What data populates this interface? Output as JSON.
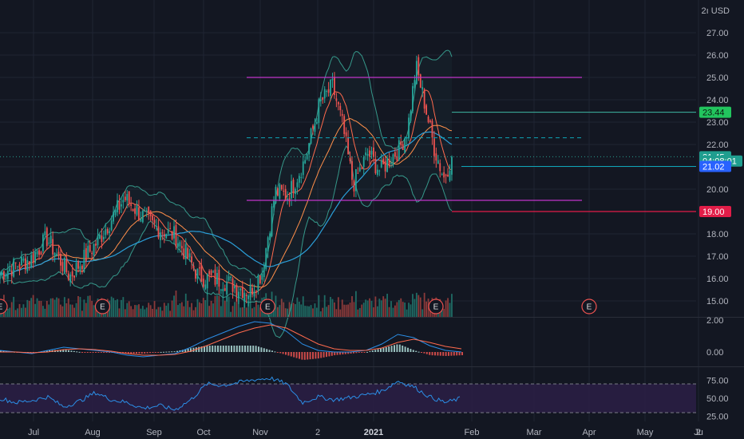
{
  "header": {
    "currency_label": "2ı USD"
  },
  "colors": {
    "background": "#131722",
    "grid": "#1f2433",
    "candle_up": "#26a69a",
    "candle_down": "#ef5350",
    "volume_up": "#1f6b64",
    "volume_down": "#8b3a3a",
    "ma_fast": "#ff6a4d",
    "ma_slow": "#ff8f4a",
    "ma_long": "#2b9fd8",
    "bollinger": "#3fb8a4",
    "resistance": "#c034c8",
    "target": "#22c55e",
    "stop": "#e11d48",
    "price_line": "#0ea5b7",
    "macd_line": "#2b8ee6",
    "signal_line": "#ff6a4d",
    "rsi_line": "#2b8ee6",
    "rsi_band": "#2a1e44"
  },
  "chart_data": [
    {
      "type": "candlestick",
      "title": "",
      "price_axis": {
        "ylim": [
          14.5,
          27.5
        ],
        "ticks": [
          "27.00",
          "26.00",
          "25.00",
          "24.00",
          "23.00",
          "22.00",
          "21.00",
          "20.00",
          "19.00",
          "18.00",
          "17.00",
          "16.00",
          "15.00"
        ]
      },
      "time_axis": {
        "ticks": [
          "Jul",
          "Aug",
          "Sep",
          "Oct",
          "Nov",
          "2",
          "2021",
          "Feb",
          "Mar",
          "Apr",
          "May",
          "2",
          "Ju"
        ]
      },
      "date_range": [
        "2020-06-01",
        "2021-02-19"
      ],
      "close_series": [
        {
          "date": "2020-06-01",
          "close": 16.2
        },
        {
          "date": "2020-06-15",
          "close": 16.6
        },
        {
          "date": "2020-06-29",
          "close": 16.9
        },
        {
          "date": "2020-07-08",
          "close": 17.8
        },
        {
          "date": "2020-07-20",
          "close": 16.1
        },
        {
          "date": "2020-08-03",
          "close": 17.6
        },
        {
          "date": "2020-08-17",
          "close": 19.6
        },
        {
          "date": "2020-08-31",
          "close": 18.4
        },
        {
          "date": "2020-09-14",
          "close": 17.9
        },
        {
          "date": "2020-09-28",
          "close": 16.1
        },
        {
          "date": "2020-10-12",
          "close": 15.9
        },
        {
          "date": "2020-10-26",
          "close": 15.4
        },
        {
          "date": "2020-11-02",
          "close": 16.3
        },
        {
          "date": "2020-11-09",
          "close": 19.9
        },
        {
          "date": "2020-11-16",
          "close": 19.7
        },
        {
          "date": "2020-11-25",
          "close": 21.3
        },
        {
          "date": "2020-12-03",
          "close": 23.8
        },
        {
          "date": "2020-12-10",
          "close": 24.6
        },
        {
          "date": "2020-12-15",
          "close": 23.0
        },
        {
          "date": "2020-12-21",
          "close": 20.2
        },
        {
          "date": "2020-12-29",
          "close": 21.6
        },
        {
          "date": "2021-01-06",
          "close": 20.8
        },
        {
          "date": "2021-01-13",
          "close": 21.4
        },
        {
          "date": "2021-01-20",
          "close": 21.8
        },
        {
          "date": "2021-01-26",
          "close": 22.7
        },
        {
          "date": "2021-02-01",
          "close": 25.5
        },
        {
          "date": "2021-02-05",
          "close": 24.0
        },
        {
          "date": "2021-02-10",
          "close": 21.9
        },
        {
          "date": "2021-02-15",
          "close": 20.5
        },
        {
          "date": "2021-02-19",
          "close": 21.45
        }
      ],
      "levels": [
        {
          "name": "resistance",
          "value": 25.0,
          "style": "solid"
        },
        {
          "name": "support",
          "value": 19.5,
          "style": "solid"
        },
        {
          "name": "mid",
          "value": 22.3,
          "style": "dashed"
        },
        {
          "name": "target",
          "value": 23.44,
          "style": "solid"
        },
        {
          "name": "stop",
          "value": 19.0,
          "style": "solid"
        }
      ],
      "price_tags": [
        {
          "label": "23.44",
          "kind": "target",
          "value": 23.44
        },
        {
          "label": "21.45",
          "kind": "last",
          "value": 21.45
        },
        {
          "label": "04:08:01",
          "kind": "countdown",
          "value": 21.26
        },
        {
          "label": "21.02",
          "kind": "prev",
          "value": 21.02
        },
        {
          "label": "19.00",
          "kind": "stop",
          "value": 19.0
        }
      ],
      "earnings_markers": [
        {
          "label": "E",
          "date": "2020-06-01"
        },
        {
          "label": "E",
          "date": "2020-08-06"
        },
        {
          "label": "E",
          "date": "2020-11-05"
        },
        {
          "label": "E",
          "date": "2021-02-11"
        },
        {
          "label": "E",
          "date": "2021-05-06"
        }
      ]
    },
    {
      "type": "line",
      "title": "",
      "ylim": [
        -1.5,
        2.2
      ],
      "ticks": [
        "2.00",
        "0.00"
      ],
      "series": [
        {
          "values": [
            0.1,
            0.0,
            -0.1,
            0.1,
            0.3,
            0.2,
            0.1,
            0.0,
            -0.2,
            -0.3,
            -0.2,
            -0.1,
            0.3,
            0.8,
            1.2,
            1.6,
            1.9,
            1.8,
            1.3,
            0.5,
            0.1,
            0.0,
            0.0,
            0.1,
            0.5,
            1.1,
            0.9,
            0.4,
            0.1,
            0.0
          ]
        },
        {
          "values": [
            0.0,
            0.0,
            -0.05,
            0.0,
            0.15,
            0.2,
            0.15,
            0.05,
            -0.1,
            -0.2,
            -0.2,
            -0.15,
            0.05,
            0.4,
            0.8,
            1.2,
            1.5,
            1.7,
            1.5,
            1.0,
            0.5,
            0.2,
            0.1,
            0.1,
            0.25,
            0.6,
            0.8,
            0.6,
            0.35,
            0.2
          ]
        }
      ]
    },
    {
      "type": "line",
      "title": "",
      "ylim": [
        22,
        82
      ],
      "ticks": [
        "75.00",
        "50.00",
        "25.00"
      ],
      "bands": [
        70,
        30
      ],
      "series": [
        {
          "values": [
            50,
            44,
            47,
            52,
            38,
            46,
            58,
            48,
            44,
            36,
            40,
            34,
            48,
            70,
            68,
            72,
            76,
            78,
            70,
            44,
            52,
            48,
            51,
            55,
            60,
            74,
            66,
            52,
            44,
            50
          ]
        }
      ]
    }
  ]
}
